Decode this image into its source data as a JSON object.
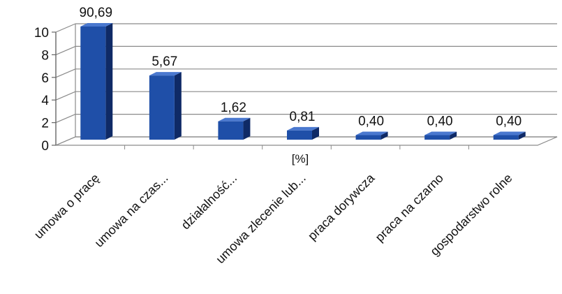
{
  "chart_data": {
    "type": "bar",
    "title": "",
    "xlabel": "[%]",
    "ylabel": "",
    "ylim": [
      0,
      10
    ],
    "y_ticks": [
      "0",
      "2",
      "4",
      "6",
      "8",
      "10"
    ],
    "grid": true,
    "categories": [
      "umowa o pracę",
      "umowa na czas...",
      "działalność...",
      "umowa zlecenie lub...",
      "praca dorywcza",
      "praca na czarno",
      "gospodarstwo rolne"
    ],
    "values": [
      90.69,
      5.67,
      1.62,
      0.81,
      0.4,
      0.4,
      0.4
    ],
    "data_labels": [
      "90,69",
      "5,67",
      "1,62",
      "0,81",
      "0,40",
      "0,40",
      "0,40"
    ],
    "bar_color": "#1f4fa8",
    "bar_color_dark": "#0f2a66",
    "bar_color_light": "#4a78cf"
  }
}
